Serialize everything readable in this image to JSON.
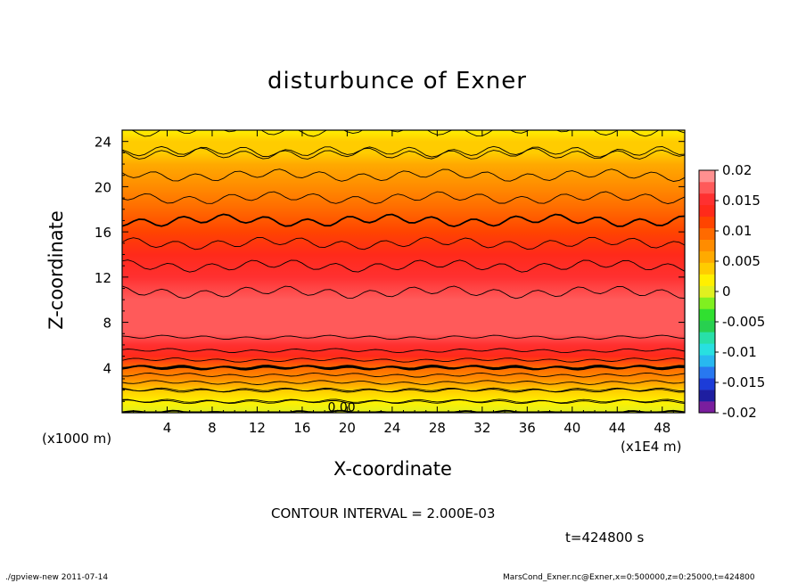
{
  "chart_data": {
    "type": "heatmap",
    "title": "disturbunce of Exner",
    "xlabel": "X-coordinate",
    "ylabel": "Z-coordinate",
    "x_ticks": [
      "4",
      "8",
      "12",
      "16",
      "20",
      "24",
      "28",
      "32",
      "36",
      "40",
      "44",
      "48"
    ],
    "x_tick_values": [
      4,
      8,
      12,
      16,
      20,
      24,
      28,
      32,
      36,
      40,
      44,
      48
    ],
    "y_ticks": [
      "4",
      "8",
      "12",
      "16",
      "20",
      "24"
    ],
    "y_tick_values": [
      4,
      8,
      12,
      16,
      20,
      24
    ],
    "xlim": [
      0,
      50
    ],
    "ylim": [
      0,
      25
    ],
    "x_unit": "(x1E4 m)",
    "y_unit": "(x1000 m)",
    "colorbar": {
      "ticks": [
        "0.02",
        "0.015",
        "0.01",
        "0.005",
        "0",
        "-0.005",
        "-0.01",
        "-0.015",
        "-0.02"
      ],
      "range": [
        -0.02,
        0.02
      ],
      "colors": [
        "#7a1e9e",
        "#1e1ea0",
        "#1c3cd8",
        "#2878f0",
        "#28b8f0",
        "#28e0e0",
        "#28e0a8",
        "#28d050",
        "#30e030",
        "#80f020",
        "#e0f020",
        "#fff000",
        "#ffcc00",
        "#ffaa00",
        "#ff8c00",
        "#ff6a00",
        "#ff4400",
        "#ff2a1a",
        "#ff3030",
        "#ff5a5a",
        "#ff9090"
      ]
    },
    "profile_heights": [
      0,
      1,
      2,
      3,
      4,
      5,
      6,
      7,
      8,
      9,
      10,
      12,
      14,
      16,
      18,
      20,
      22,
      23,
      24,
      25
    ],
    "profile_values": [
      0.0,
      0.002,
      0.004,
      0.007,
      0.01,
      0.013,
      0.015,
      0.0165,
      0.0172,
      0.017,
      0.0165,
      0.015,
      0.013,
      0.011,
      0.009,
      0.007,
      0.005,
      0.004,
      0.003,
      0.002
    ],
    "contour_interval": 0.002,
    "zero_label": "0.00",
    "annotation": "CONTOUR INTERVAL = 2.000E-03",
    "time_label": "t=424800 s"
  },
  "footer": {
    "left": "./gpview-new   2011-07-14",
    "right": "MarsCond_Exner.nc@Exner,x=0:500000,z=0:25000,t=424800"
  }
}
